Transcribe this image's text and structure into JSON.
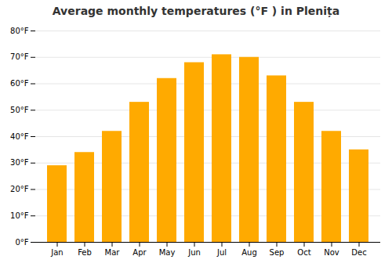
{
  "chart_data": {
    "type": "bar",
    "title": "Average monthly temperatures (°F ) in Plenița",
    "categories": [
      "Jan",
      "Feb",
      "Mar",
      "Apr",
      "May",
      "Jun",
      "Jul",
      "Aug",
      "Sep",
      "Oct",
      "Nov",
      "Dec"
    ],
    "values": [
      29,
      34,
      42,
      53,
      62,
      68,
      71,
      70,
      63,
      53,
      42,
      35
    ],
    "color": "#FFAA00",
    "ylim": [
      0,
      80
    ],
    "yticks": [
      {
        "value": 0,
        "label": "0°F"
      },
      {
        "value": 10,
        "label": "10°F"
      },
      {
        "value": 20,
        "label": "20°F"
      },
      {
        "value": 30,
        "label": "30°F"
      },
      {
        "value": 40,
        "label": "40°F"
      },
      {
        "value": 50,
        "label": "50°F"
      },
      {
        "value": 60,
        "label": "60°F"
      },
      {
        "value": 70,
        "label": "70°F"
      },
      {
        "value": 80,
        "label": "80°F"
      }
    ],
    "grid": true
  }
}
